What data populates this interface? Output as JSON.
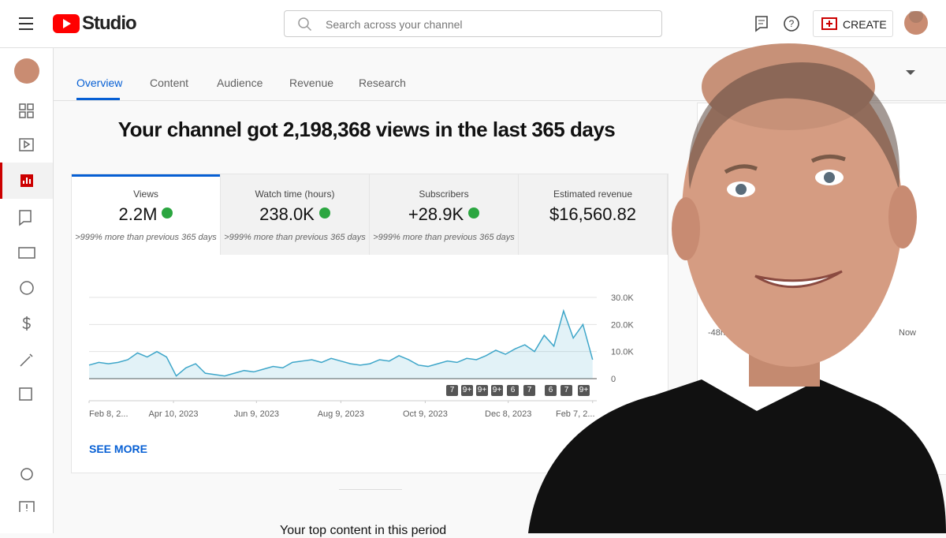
{
  "header": {
    "logo": "Studio",
    "search_placeholder": "Search across your channel",
    "create": "CREATE"
  },
  "tabs": [
    "Overview",
    "Content",
    "Audience",
    "Revenue",
    "Research"
  ],
  "headline": "Your channel got 2,198,368 views in the last 365 days",
  "cards": [
    {
      "label": "Views",
      "value": "2.2M",
      "change": ">999% more than previous 365 days"
    },
    {
      "label": "Watch time (hours)",
      "value": "238.0K",
      "change": ">999% more than previous 365 days"
    },
    {
      "label": "Subscribers",
      "value": "+28.9K",
      "change": ">999% more than previous 365 days"
    },
    {
      "label": "Estimated revenue",
      "value": "$16,560.82"
    }
  ],
  "chart_data": {
    "type": "line",
    "x": [
      0,
      7,
      14,
      21,
      28,
      35,
      42,
      49,
      56,
      63,
      70,
      77,
      84,
      91,
      98,
      105,
      112,
      119,
      126,
      133,
      140,
      147,
      154,
      161,
      168,
      175,
      182,
      189,
      196,
      203,
      210,
      217,
      224,
      231,
      238,
      245,
      252,
      259,
      266,
      273,
      280,
      287,
      294,
      301,
      308,
      315,
      322,
      329,
      336,
      343,
      350,
      357,
      364
    ],
    "series": [
      {
        "color": "#3ea6c9",
        "values": [
          5000,
          6000,
          5500,
          6000,
          7000,
          9500,
          8000,
          10000,
          8000,
          1000,
          4000,
          5500,
          2000,
          1500,
          1000,
          2000,
          3000,
          2500,
          3500,
          4500,
          4000,
          6000,
          6500,
          7000,
          6000,
          7500,
          6500,
          5500,
          5000,
          5500,
          7000,
          6500,
          8500,
          7000,
          5000,
          4500,
          5500,
          6500,
          6000,
          7500,
          7000,
          8500,
          10500,
          9000,
          11000,
          12500,
          10000,
          16000,
          12000,
          25000,
          15000,
          20000,
          7000
        ]
      }
    ],
    "xlim": [
      0,
      367
    ],
    "xticks": [
      {
        "value": 0,
        "label": "Feb 8, 2..."
      },
      {
        "value": 61,
        "label": "Apr 10, 2023"
      },
      {
        "value": 121,
        "label": "Jun 9, 2023"
      },
      {
        "value": 182,
        "label": "Aug 9, 2023"
      },
      {
        "value": 243,
        "label": "Oct 9, 2023"
      },
      {
        "value": 303,
        "label": "Dec 8, 2023"
      },
      {
        "value": 364,
        "label": "Feb 7, 2..."
      }
    ],
    "ylim": [
      0,
      30000
    ],
    "yticks": [
      0,
      {
        "value": 10000,
        "label": "10.0K"
      },
      {
        "value": 20000,
        "label": "20.0K"
      },
      {
        "value": 30000,
        "label": "30.0K"
      }
    ],
    "grid": true
  },
  "badges": [
    "7",
    "9+",
    "9+",
    "9+",
    "6",
    "7",
    "6",
    "7",
    "9+"
  ],
  "see_more": "SEE MORE",
  "top_content": "Your top content in this period",
  "realtime": {
    "start": "-48h",
    "end": "Now"
  }
}
